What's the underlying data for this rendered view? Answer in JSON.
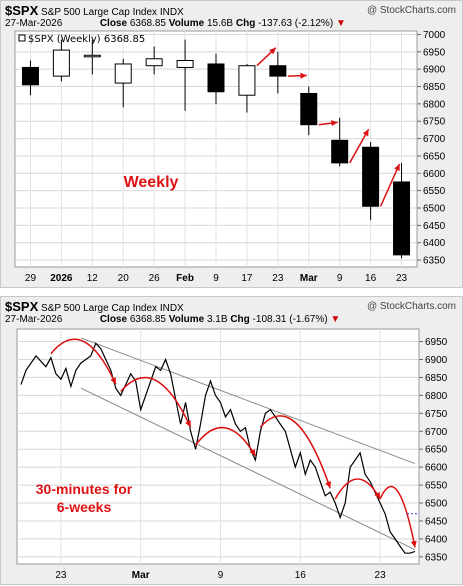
{
  "watermark": "@ StockCharts.com",
  "panel1": {
    "symbol": "$SPX",
    "name": "S&P 500 Large Cap Index",
    "exchange": "INDX",
    "date": "27-Mar-2026",
    "close_label": "Close",
    "close": "6368.85",
    "volume_label": "Volume",
    "volume": "15.6B",
    "chg_label": "Chg",
    "chg": "-137.63 (-2.12%)",
    "legend": "$SPX (Weekly) 6368.85",
    "annotation": "Weekly"
  },
  "panel2": {
    "symbol": "$SPX",
    "name": "S&P 500 Large Cap Index",
    "exchange": "INDX",
    "date": "27-Mar-2026",
    "close_label": "Close",
    "close": "6368.85",
    "volume_label": "Volume",
    "volume": "3.1B",
    "chg_label": "Chg",
    "chg": "-108.31 (-1.67%)",
    "annotation_line1": "30-minutes for",
    "annotation_line2": "6-weeks"
  },
  "chart_data": [
    {
      "type": "candlestick",
      "interval": "weekly",
      "ylim": [
        6330,
        7010
      ],
      "y_ticks": [
        6350,
        6400,
        6450,
        6500,
        6550,
        6600,
        6650,
        6700,
        6750,
        6800,
        6850,
        6900,
        6950,
        7000
      ],
      "x_tick_labels": [
        "29",
        "2026",
        "12",
        "20",
        "26",
        "Feb",
        "9",
        "17",
        "23",
        "Mar",
        "9",
        "16",
        "23"
      ],
      "candles": [
        {
          "label": "29",
          "open": 6905,
          "high": 6925,
          "low": 6825,
          "close": 6855
        },
        {
          "label": "2026",
          "open": 6880,
          "high": 6985,
          "low": 6865,
          "close": 6955
        },
        {
          "label": "12",
          "open": 6940,
          "high": 6985,
          "low": 6885,
          "close": 6940
        },
        {
          "label": "20",
          "open": 6860,
          "high": 6930,
          "low": 6790,
          "close": 6915
        },
        {
          "label": "26",
          "open": 6910,
          "high": 6965,
          "low": 6885,
          "close": 6930
        },
        {
          "label": "Feb",
          "open": 6905,
          "high": 6985,
          "low": 6780,
          "close": 6925
        },
        {
          "label": "9",
          "open": 6915,
          "high": 6945,
          "low": 6800,
          "close": 6835
        },
        {
          "label": "17",
          "open": 6825,
          "high": 6915,
          "low": 6775,
          "close": 6910
        },
        {
          "label": "23",
          "open": 6910,
          "high": 6950,
          "low": 6830,
          "close": 6880
        },
        {
          "label": "Mar",
          "open": 6830,
          "high": 6850,
          "low": 6710,
          "close": 6740
        },
        {
          "label": "9",
          "open": 6695,
          "high": 6760,
          "low": 6620,
          "close": 6630
        },
        {
          "label": "16",
          "open": 6675,
          "high": 6690,
          "low": 6465,
          "close": 6505
        },
        {
          "label": "23",
          "open": 6575,
          "high": 6630,
          "low": 6355,
          "close": 6365
        }
      ]
    },
    {
      "type": "line",
      "interval": "30-minute",
      "ylim": [
        6330,
        6985
      ],
      "y_ticks": [
        6350,
        6400,
        6450,
        6500,
        6550,
        6600,
        6650,
        6700,
        6750,
        6800,
        6850,
        6900,
        6950
      ],
      "x_tick_labels": [
        "23",
        "Mar",
        "9",
        "16",
        "23"
      ],
      "series": [
        {
          "values": [
            6830,
            6870,
            6890,
            6910,
            6895,
            6880,
            6905,
            6860,
            6845,
            6875,
            6825,
            6870,
            6890,
            6900,
            6910,
            6945,
            6930,
            6900,
            6870,
            6820,
            6800,
            6830,
            6860,
            6840,
            6760,
            6800,
            6840,
            6880,
            6870,
            6900,
            6860,
            6790,
            6720,
            6780,
            6700,
            6650,
            6720,
            6800,
            6840,
            6800,
            6780,
            6740,
            6760,
            6720,
            6700,
            6710,
            6650,
            6620,
            6700,
            6750,
            6760,
            6740,
            6720,
            6700,
            6650,
            6600,
            6640,
            6580,
            6620,
            6600,
            6560,
            6520,
            6530,
            6500,
            6460,
            6500,
            6600,
            6620,
            6640,
            6580,
            6560,
            6530,
            6500,
            6470,
            6420,
            6400,
            6380,
            6360,
            6360,
            6365
          ]
        }
      ],
      "channel": {
        "upper": [
          [
            0,
            6960
          ],
          [
            79,
            6610
          ]
        ],
        "lower": [
          [
            0,
            6820
          ],
          [
            79,
            6370
          ]
        ]
      }
    }
  ]
}
